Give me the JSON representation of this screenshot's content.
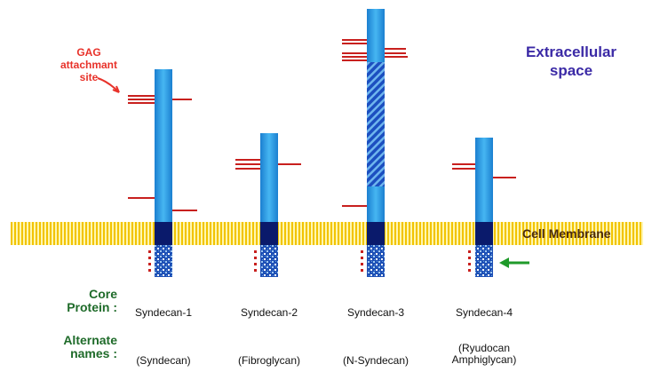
{
  "labels": {
    "gag": [
      "GAG",
      "attachmant",
      "site"
    ],
    "extracellular": [
      "Extracellular",
      "space"
    ],
    "cell_membrane": "Cell Membrane",
    "core_protein": [
      "Core",
      "Protein :"
    ],
    "alternate_names": [
      "Alternate",
      "names :"
    ]
  },
  "proteins": [
    {
      "name": "Syndecan-1",
      "alternate": [
        "(Syndecan)"
      ]
    },
    {
      "name": "Syndecan-2",
      "alternate": [
        "(Fibroglycan)"
      ]
    },
    {
      "name": "Syndecan-3",
      "alternate": [
        "(N-Syndecan)"
      ]
    },
    {
      "name": "Syndecan-4",
      "alternate": [
        "(Ryudocan",
        "Amphiglycan)"
      ]
    }
  ],
  "colors": {
    "core_protein": "#2ea3e6",
    "transmembrane": "#0a1a6b",
    "mucin_region": "#1c4fc0",
    "gag_chains": "#c8201e",
    "membrane": "#f5c800",
    "extracellular_text": "#3b2aa6",
    "gag_text": "#e8322a",
    "row_header_text": "#1f6b2a",
    "arrow": "#1f9a2a"
  }
}
